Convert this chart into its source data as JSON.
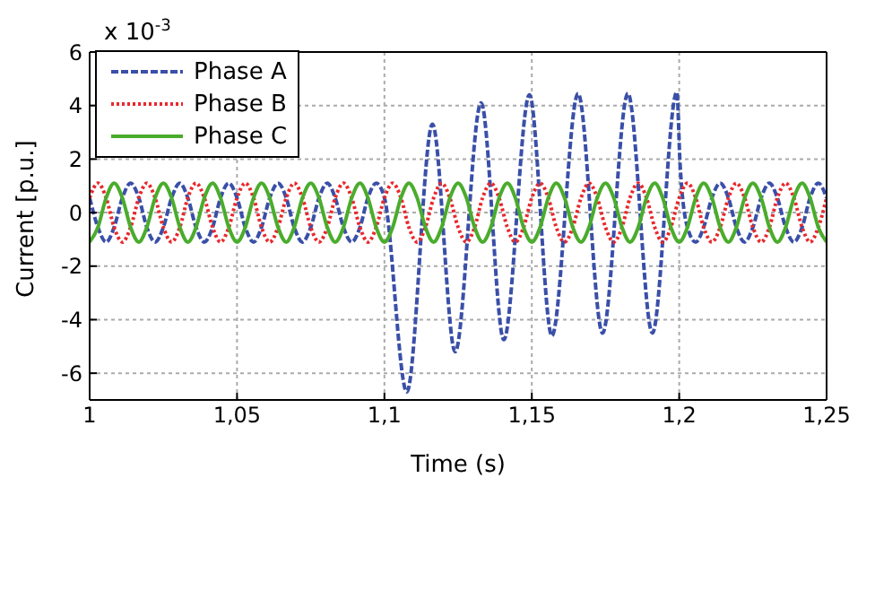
{
  "chart_data": {
    "type": "line",
    "xlabel": "Time (s)",
    "ylabel": "Current [p.u.]",
    "annotations": [
      "x 10$^{-3}$"
    ],
    "x": [
      1.0,
      1.0028,
      1.0056,
      1.0083,
      1.0111,
      1.0139,
      1.0167,
      1.0194,
      1.0222,
      1.025,
      1.0278,
      1.0306,
      1.0333,
      1.0361,
      1.0389,
      1.0417,
      1.0444,
      1.0472,
      1.05,
      1.0528,
      1.0556,
      1.0583,
      1.0611,
      1.0639,
      1.0667,
      1.0694,
      1.0722,
      1.075,
      1.0778,
      1.0806,
      1.0833,
      1.0861,
      1.0889,
      1.0917,
      1.0944,
      1.0972,
      1.1,
      1.1028,
      1.1056,
      1.1083,
      1.1111,
      1.1139,
      1.1167,
      1.1194,
      1.1222,
      1.125,
      1.1278,
      1.1306,
      1.1333,
      1.1361,
      1.1389,
      1.1417,
      1.1444,
      1.1472,
      1.15,
      1.1528,
      1.1556,
      1.1583,
      1.1611,
      1.1639,
      1.1667,
      1.1694,
      1.1722,
      1.175,
      1.1778,
      1.1806,
      1.1833,
      1.1861,
      1.1889,
      1.1917,
      1.1944,
      1.1972,
      1.2,
      1.2028,
      1.2056,
      1.2083,
      1.2111,
      1.2139,
      1.2167,
      1.2194,
      1.2222,
      1.225,
      1.2278,
      1.2306,
      1.2333,
      1.2361,
      1.2389,
      1.2417,
      1.2444,
      1.2472,
      1.25
    ],
    "series": [
      {
        "name": "Phase A",
        "color": "#3a4fa8",
        "line_style": "dashed",
        "x": [
          1.0,
          1.0028,
          1.0056,
          1.0083,
          1.0111,
          1.0139,
          1.0167,
          1.0194,
          1.0222,
          1.025,
          1.0278,
          1.0306,
          1.0333,
          1.0361,
          1.0389,
          1.0417,
          1.0444,
          1.0472,
          1.05,
          1.0528,
          1.0556,
          1.0583,
          1.0611,
          1.0639,
          1.0667,
          1.0694,
          1.0722,
          1.075,
          1.0778,
          1.0806,
          1.0833,
          1.0861,
          1.0889,
          1.0917,
          1.0944,
          1.0972,
          1.1,
          1.1076,
          1.1163,
          1.124,
          1.1328,
          1.1405,
          1.1492,
          1.1568,
          1.1657,
          1.174,
          1.1826,
          1.1909,
          1.1992,
          1.2003,
          1.2028,
          1.2056,
          1.2083,
          1.2111,
          1.2139,
          1.2167,
          1.2194,
          1.2222,
          1.225,
          1.2278,
          1.2306,
          1.2333,
          1.2361,
          1.2389,
          1.2417,
          1.2444,
          1.2472,
          1.25
        ],
        "values": [
          0.55,
          -0.55,
          -1.1,
          -0.55,
          0.55,
          1.1,
          0.55,
          -0.55,
          -1.1,
          -0.55,
          0.55,
          1.1,
          0.55,
          -0.55,
          -1.1,
          -0.55,
          0.55,
          1.1,
          0.55,
          -0.55,
          -1.1,
          -0.55,
          0.55,
          1.1,
          0.55,
          -0.55,
          -1.1,
          -0.55,
          0.55,
          1.1,
          0.55,
          -0.55,
          -1.1,
          -0.55,
          0.55,
          1.1,
          0.55,
          -6.7,
          3.3,
          -5.2,
          4.1,
          -4.75,
          4.4,
          -4.6,
          4.45,
          -4.5,
          4.45,
          -4.5,
          4.5,
          1.8,
          -0.55,
          -1.1,
          -0.55,
          0.55,
          1.1,
          0.55,
          -0.55,
          -1.1,
          -0.55,
          0.55,
          1.1,
          0.55,
          -0.55,
          -1.1,
          -0.55,
          0.55,
          1.1,
          0.55
        ]
      },
      {
        "name": "Phase B",
        "color": "#e8282c",
        "line_style": "dotted",
        "values": [
          0.55,
          1.1,
          0.55,
          -0.55,
          -1.1,
          -0.55,
          0.55,
          1.1,
          0.55,
          -0.55,
          -1.1,
          -0.55,
          0.55,
          1.1,
          0.55,
          -0.55,
          -1.1,
          -0.55,
          0.55,
          1.1,
          0.55,
          -0.55,
          -1.1,
          -0.55,
          0.55,
          1.1,
          0.55,
          -0.55,
          -1.1,
          -0.55,
          0.55,
          1.1,
          0.55,
          -0.55,
          -1.1,
          -0.55,
          0.55,
          1.1,
          0.55,
          -0.55,
          -1.1,
          -0.55,
          0.55,
          1.1,
          0.55,
          -0.55,
          -1.1,
          -0.55,
          0.55,
          1.1,
          0.55,
          -0.55,
          -1.1,
          -0.55,
          0.55,
          1.1,
          0.55,
          -0.55,
          -1.1,
          -0.55,
          0.55,
          1.1,
          0.55,
          -0.55,
          -1.1,
          -0.55,
          0.55,
          1.1,
          0.55,
          -0.55,
          -1.1,
          -0.55,
          0.55,
          1.1,
          0.55,
          -0.55,
          -1.1,
          -0.55,
          0.55,
          1.1,
          0.55,
          -0.55,
          -1.1,
          -0.55,
          0.55,
          1.1,
          0.55,
          -0.55,
          -1.1,
          -0.55,
          0.55
        ]
      },
      {
        "name": "Phase C",
        "color": "#4aac2c",
        "line_style": "solid",
        "values": [
          -1.1,
          -0.55,
          0.55,
          1.1,
          0.55,
          -0.55,
          -1.1,
          -0.55,
          0.55,
          1.1,
          0.55,
          -0.55,
          -1.1,
          -0.55,
          0.55,
          1.1,
          0.55,
          -0.55,
          -1.1,
          -0.55,
          0.55,
          1.1,
          0.55,
          -0.55,
          -1.1,
          -0.55,
          0.55,
          1.1,
          0.55,
          -0.55,
          -1.1,
          -0.55,
          0.55,
          1.1,
          0.55,
          -0.55,
          -1.1,
          -0.55,
          0.55,
          1.1,
          0.55,
          -0.55,
          -1.1,
          -0.55,
          0.55,
          1.1,
          0.55,
          -0.55,
          -1.1,
          -0.55,
          0.55,
          1.1,
          0.55,
          -0.55,
          -1.1,
          -0.55,
          0.55,
          1.1,
          0.55,
          -0.55,
          -1.1,
          -0.55,
          0.55,
          1.1,
          0.55,
          -0.55,
          -1.1,
          -0.55,
          0.55,
          1.1,
          0.55,
          -0.55,
          -1.1,
          -0.55,
          0.55,
          1.1,
          0.55,
          -0.55,
          -1.1,
          -0.55,
          0.55,
          1.1,
          0.55,
          -0.55,
          -1.1,
          -0.55,
          0.55,
          1.1,
          0.55,
          -0.55,
          -1.1
        ]
      }
    ],
    "xlim": [
      1,
      1.25
    ],
    "xticks": [
      {
        "value": 1,
        "label": "1"
      },
      {
        "value": 1.05,
        "label": "1,05"
      },
      {
        "value": 1.1,
        "label": "1,1"
      },
      {
        "value": 1.15,
        "label": "1,15"
      },
      {
        "value": 1.2,
        "label": "1,2"
      },
      {
        "value": 1.25,
        "label": "1,25"
      }
    ],
    "ylim": [
      -7,
      6
    ],
    "yticks": [
      -6,
      -4,
      -2,
      0,
      2,
      4,
      6
    ],
    "grid": true,
    "legend": "top left",
    "marker": "none"
  }
}
